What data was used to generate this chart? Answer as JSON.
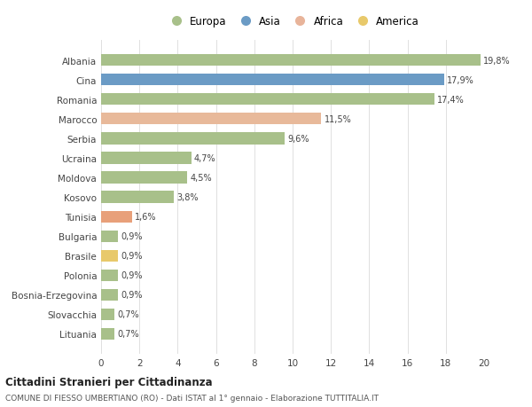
{
  "categories": [
    "Albania",
    "Cina",
    "Romania",
    "Marocco",
    "Serbia",
    "Ucraina",
    "Moldova",
    "Kosovo",
    "Tunisia",
    "Bulgaria",
    "Brasile",
    "Polonia",
    "Bosnia-Erzegovina",
    "Slovacchia",
    "Lituania"
  ],
  "values": [
    19.8,
    17.9,
    17.4,
    11.5,
    9.6,
    4.7,
    4.5,
    3.8,
    1.6,
    0.9,
    0.9,
    0.9,
    0.9,
    0.7,
    0.7
  ],
  "labels": [
    "19,8%",
    "17,9%",
    "17,4%",
    "11,5%",
    "9,6%",
    "4,7%",
    "4,5%",
    "3,8%",
    "1,6%",
    "0,9%",
    "0,9%",
    "0,9%",
    "0,9%",
    "0,7%",
    "0,7%"
  ],
  "colors": [
    "#a8c08a",
    "#6b9bc5",
    "#a8c08a",
    "#e8b99a",
    "#a8c08a",
    "#a8c08a",
    "#a8c08a",
    "#a8c08a",
    "#e8a07a",
    "#a8c08a",
    "#e8c96b",
    "#a8c08a",
    "#a8c08a",
    "#a8c08a",
    "#a8c08a"
  ],
  "legend_labels": [
    "Europa",
    "Asia",
    "Africa",
    "America"
  ],
  "legend_colors": [
    "#a8c08a",
    "#6b9bc5",
    "#e8b49a",
    "#e8c96b"
  ],
  "xlim": [
    0,
    20
  ],
  "xticks": [
    0,
    2,
    4,
    6,
    8,
    10,
    12,
    14,
    16,
    18,
    20
  ],
  "title1": "Cittadini Stranieri per Cittadinanza",
  "title2": "COMUNE DI FIESSO UMBERTIANO (RO) - Dati ISTAT al 1° gennaio - Elaborazione TUTTITALIA.IT",
  "background_color": "#ffffff",
  "grid_color": "#e0e0e0"
}
